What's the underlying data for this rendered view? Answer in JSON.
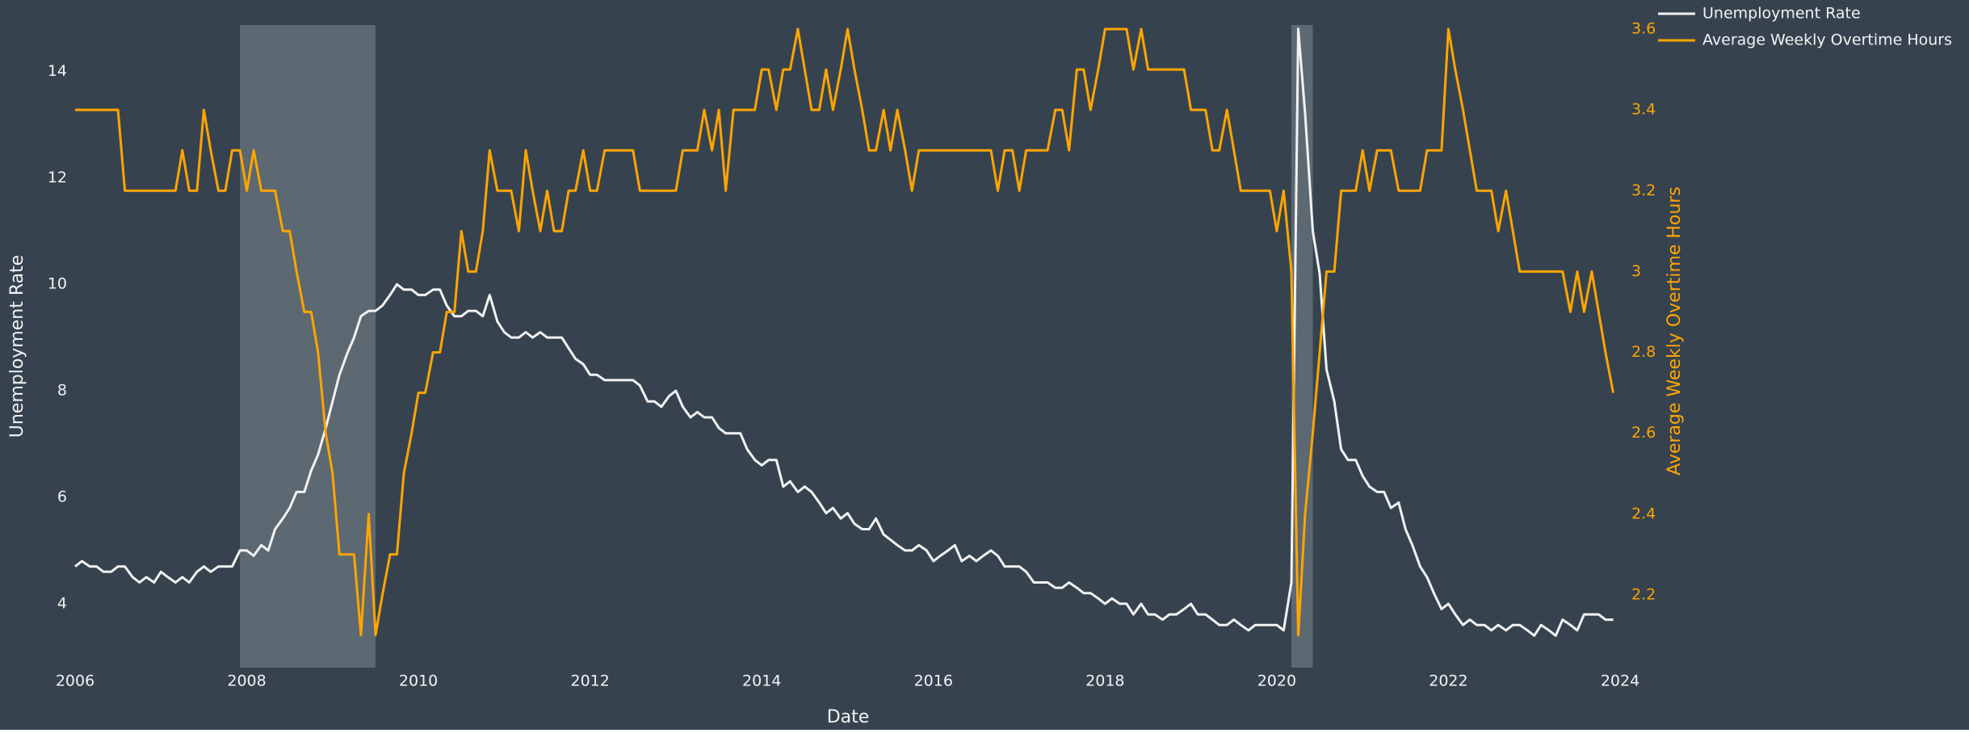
{
  "chart_data": {
    "type": "line",
    "x_label": "Date",
    "y_label": "Unemployment Rate",
    "y2_label": "Average Weekly Overtime Hours",
    "x": [
      2006,
      2006.08,
      2006.17,
      2006.25,
      2006.33,
      2006.42,
      2006.5,
      2006.58,
      2006.67,
      2006.75,
      2006.83,
      2006.92,
      2007,
      2007.08,
      2007.17,
      2007.25,
      2007.33,
      2007.42,
      2007.5,
      2007.58,
      2007.67,
      2007.75,
      2007.83,
      2007.92,
      2008,
      2008.08,
      2008.17,
      2008.25,
      2008.33,
      2008.42,
      2008.5,
      2008.58,
      2008.67,
      2008.75,
      2008.83,
      2008.92,
      2009,
      2009.08,
      2009.17,
      2009.25,
      2009.33,
      2009.42,
      2009.5,
      2009.58,
      2009.67,
      2009.75,
      2009.83,
      2009.92,
      2010,
      2010.08,
      2010.17,
      2010.25,
      2010.33,
      2010.42,
      2010.5,
      2010.58,
      2010.67,
      2010.75,
      2010.83,
      2010.92,
      2011,
      2011.08,
      2011.17,
      2011.25,
      2011.33,
      2011.42,
      2011.5,
      2011.58,
      2011.67,
      2011.75,
      2011.83,
      2011.92,
      2012,
      2012.08,
      2012.17,
      2012.25,
      2012.33,
      2012.42,
      2012.5,
      2012.58,
      2012.67,
      2012.75,
      2012.83,
      2012.92,
      2013,
      2013.08,
      2013.17,
      2013.25,
      2013.33,
      2013.42,
      2013.5,
      2013.58,
      2013.67,
      2013.75,
      2013.83,
      2013.92,
      2014,
      2014.08,
      2014.17,
      2014.25,
      2014.33,
      2014.42,
      2014.5,
      2014.58,
      2014.67,
      2014.75,
      2014.83,
      2014.92,
      2015,
      2015.08,
      2015.17,
      2015.25,
      2015.33,
      2015.42,
      2015.5,
      2015.58,
      2015.67,
      2015.75,
      2015.83,
      2015.92,
      2016,
      2016.08,
      2016.17,
      2016.25,
      2016.33,
      2016.42,
      2016.5,
      2016.58,
      2016.67,
      2016.75,
      2016.83,
      2016.92,
      2017,
      2017.08,
      2017.17,
      2017.25,
      2017.33,
      2017.42,
      2017.5,
      2017.58,
      2017.67,
      2017.75,
      2017.83,
      2017.92,
      2018,
      2018.08,
      2018.17,
      2018.25,
      2018.33,
      2018.42,
      2018.5,
      2018.58,
      2018.67,
      2018.75,
      2018.83,
      2018.92,
      2019,
      2019.08,
      2019.17,
      2019.25,
      2019.33,
      2019.42,
      2019.5,
      2019.58,
      2019.67,
      2019.75,
      2019.83,
      2019.92,
      2020,
      2020.08,
      2020.17,
      2020.25,
      2020.33,
      2020.42,
      2020.5,
      2020.58,
      2020.67,
      2020.75,
      2020.83,
      2020.92,
      2021,
      2021.08,
      2021.17,
      2021.25,
      2021.33,
      2021.42,
      2021.5,
      2021.58,
      2021.67,
      2021.75,
      2021.83,
      2021.92,
      2022,
      2022.08,
      2022.17,
      2022.25,
      2022.33,
      2022.42,
      2022.5,
      2022.58,
      2022.67,
      2022.75,
      2022.83,
      2022.92,
      2023,
      2023.08,
      2023.17,
      2023.25,
      2023.33,
      2023.42,
      2023.5,
      2023.58,
      2023.67,
      2023.75,
      2023.83,
      2023.92
    ],
    "series": [
      {
        "name": "Unemployment Rate",
        "color": "#f2f2f2",
        "axis": "y",
        "values": [
          4.7,
          4.8,
          4.7,
          4.7,
          4.6,
          4.6,
          4.7,
          4.7,
          4.5,
          4.4,
          4.5,
          4.4,
          4.6,
          4.5,
          4.4,
          4.5,
          4.4,
          4.6,
          4.7,
          4.6,
          4.7,
          4.7,
          4.7,
          5.0,
          5.0,
          4.9,
          5.1,
          5.0,
          5.4,
          5.6,
          5.8,
          6.1,
          6.1,
          6.5,
          6.8,
          7.3,
          7.8,
          8.3,
          8.7,
          9.0,
          9.4,
          9.5,
          9.5,
          9.6,
          9.8,
          10.0,
          9.9,
          9.9,
          9.8,
          9.8,
          9.9,
          9.9,
          9.6,
          9.4,
          9.4,
          9.5,
          9.5,
          9.4,
          9.8,
          9.3,
          9.1,
          9.0,
          9.0,
          9.1,
          9.0,
          9.1,
          9.0,
          9.0,
          9.0,
          8.8,
          8.6,
          8.5,
          8.3,
          8.3,
          8.2,
          8.2,
          8.2,
          8.2,
          8.2,
          8.1,
          7.8,
          7.8,
          7.7,
          7.9,
          8.0,
          7.7,
          7.5,
          7.6,
          7.5,
          7.5,
          7.3,
          7.2,
          7.2,
          7.2,
          6.9,
          6.7,
          6.6,
          6.7,
          6.7,
          6.2,
          6.3,
          6.1,
          6.2,
          6.1,
          5.9,
          5.7,
          5.8,
          5.6,
          5.7,
          5.5,
          5.4,
          5.4,
          5.6,
          5.3,
          5.2,
          5.1,
          5.0,
          5.0,
          5.1,
          5.0,
          4.8,
          4.9,
          5.0,
          5.1,
          4.8,
          4.9,
          4.8,
          4.9,
          5.0,
          4.9,
          4.7,
          4.7,
          4.7,
          4.6,
          4.4,
          4.4,
          4.4,
          4.3,
          4.3,
          4.4,
          4.3,
          4.2,
          4.2,
          4.1,
          4.0,
          4.1,
          4.0,
          4.0,
          3.8,
          4.0,
          3.8,
          3.8,
          3.7,
          3.8,
          3.8,
          3.9,
          4.0,
          3.8,
          3.8,
          3.7,
          3.6,
          3.6,
          3.7,
          3.6,
          3.5,
          3.6,
          3.6,
          3.6,
          3.6,
          3.5,
          4.4,
          14.8,
          13.2,
          11.0,
          10.2,
          8.4,
          7.8,
          6.9,
          6.7,
          6.7,
          6.4,
          6.2,
          6.1,
          6.1,
          5.8,
          5.9,
          5.4,
          5.1,
          4.7,
          4.5,
          4.2,
          3.9,
          4.0,
          3.8,
          3.6,
          3.7,
          3.6,
          3.6,
          3.5,
          3.6,
          3.5,
          3.6,
          3.6,
          3.5,
          3.4,
          3.6,
          3.5,
          3.4,
          3.7,
          3.6,
          3.5,
          3.8,
          3.8,
          3.8,
          3.7,
          3.7
        ]
      },
      {
        "name": "Average Weekly Overtime Hours",
        "color": "#ffa500",
        "axis": "y2",
        "values": [
          3.4,
          3.4,
          3.4,
          3.4,
          3.4,
          3.4,
          3.4,
          3.2,
          3.2,
          3.2,
          3.2,
          3.2,
          3.2,
          3.2,
          3.2,
          3.3,
          3.2,
          3.2,
          3.4,
          3.3,
          3.2,
          3.2,
          3.3,
          3.3,
          3.2,
          3.3,
          3.2,
          3.2,
          3.2,
          3.1,
          3.1,
          3.0,
          2.9,
          2.9,
          2.8,
          2.6,
          2.5,
          2.3,
          2.3,
          2.3,
          2.1,
          2.4,
          2.1,
          2.2,
          2.3,
          2.3,
          2.5,
          2.6,
          2.7,
          2.7,
          2.8,
          2.8,
          2.9,
          2.9,
          3.1,
          3.0,
          3.0,
          3.1,
          3.3,
          3.2,
          3.2,
          3.2,
          3.1,
          3.3,
          3.2,
          3.1,
          3.2,
          3.1,
          3.1,
          3.2,
          3.2,
          3.3,
          3.2,
          3.2,
          3.3,
          3.3,
          3.3,
          3.3,
          3.3,
          3.2,
          3.2,
          3.2,
          3.2,
          3.2,
          3.2,
          3.3,
          3.3,
          3.3,
          3.4,
          3.3,
          3.4,
          3.2,
          3.4,
          3.4,
          3.4,
          3.4,
          3.5,
          3.5,
          3.4,
          3.5,
          3.5,
          3.6,
          3.5,
          3.4,
          3.4,
          3.5,
          3.4,
          3.5,
          3.6,
          3.5,
          3.4,
          3.3,
          3.3,
          3.4,
          3.3,
          3.4,
          3.3,
          3.2,
          3.3,
          3.3,
          3.3,
          3.3,
          3.3,
          3.3,
          3.3,
          3.3,
          3.3,
          3.3,
          3.3,
          3.2,
          3.3,
          3.3,
          3.2,
          3.3,
          3.3,
          3.3,
          3.3,
          3.4,
          3.4,
          3.3,
          3.5,
          3.5,
          3.4,
          3.5,
          3.6,
          3.6,
          3.6,
          3.6,
          3.5,
          3.6,
          3.5,
          3.5,
          3.5,
          3.5,
          3.5,
          3.5,
          3.4,
          3.4,
          3.4,
          3.3,
          3.3,
          3.4,
          3.3,
          3.2,
          3.2,
          3.2,
          3.2,
          3.2,
          3.1,
          3.2,
          3.0,
          2.1,
          2.4,
          2.6,
          2.8,
          3.0,
          3.0,
          3.2,
          3.2,
          3.2,
          3.3,
          3.2,
          3.3,
          3.3,
          3.3,
          3.2,
          3.2,
          3.2,
          3.2,
          3.3,
          3.3,
          3.3,
          3.6,
          3.5,
          3.4,
          3.3,
          3.2,
          3.2,
          3.2,
          3.1,
          3.2,
          3.1,
          3.0,
          3.0,
          3.0,
          3.0,
          3.0,
          3.0,
          3.0,
          2.9,
          3.0,
          2.9,
          3.0,
          2.9,
          2.8,
          2.7
        ]
      }
    ],
    "shaded_regions": [
      [
        2007.92,
        2009.5
      ],
      [
        2020.17,
        2020.42
      ]
    ],
    "shade_color": "#5c6872",
    "xlim": [
      2006,
      2024
    ],
    "xticks": [
      2006,
      2008,
      2010,
      2012,
      2014,
      2016,
      2018,
      2020,
      2022,
      2024
    ],
    "ylim": [
      2.8,
      14.87
    ],
    "yticks": [
      4,
      6,
      8,
      10,
      12,
      14
    ],
    "y2lim": [
      2.02,
      3.61
    ],
    "y2ticks": [
      2.2,
      2.4,
      2.6,
      2.8,
      3,
      3.2,
      3.4,
      3.6
    ],
    "grid": false,
    "legend": "top-right",
    "background": "#36434f"
  }
}
